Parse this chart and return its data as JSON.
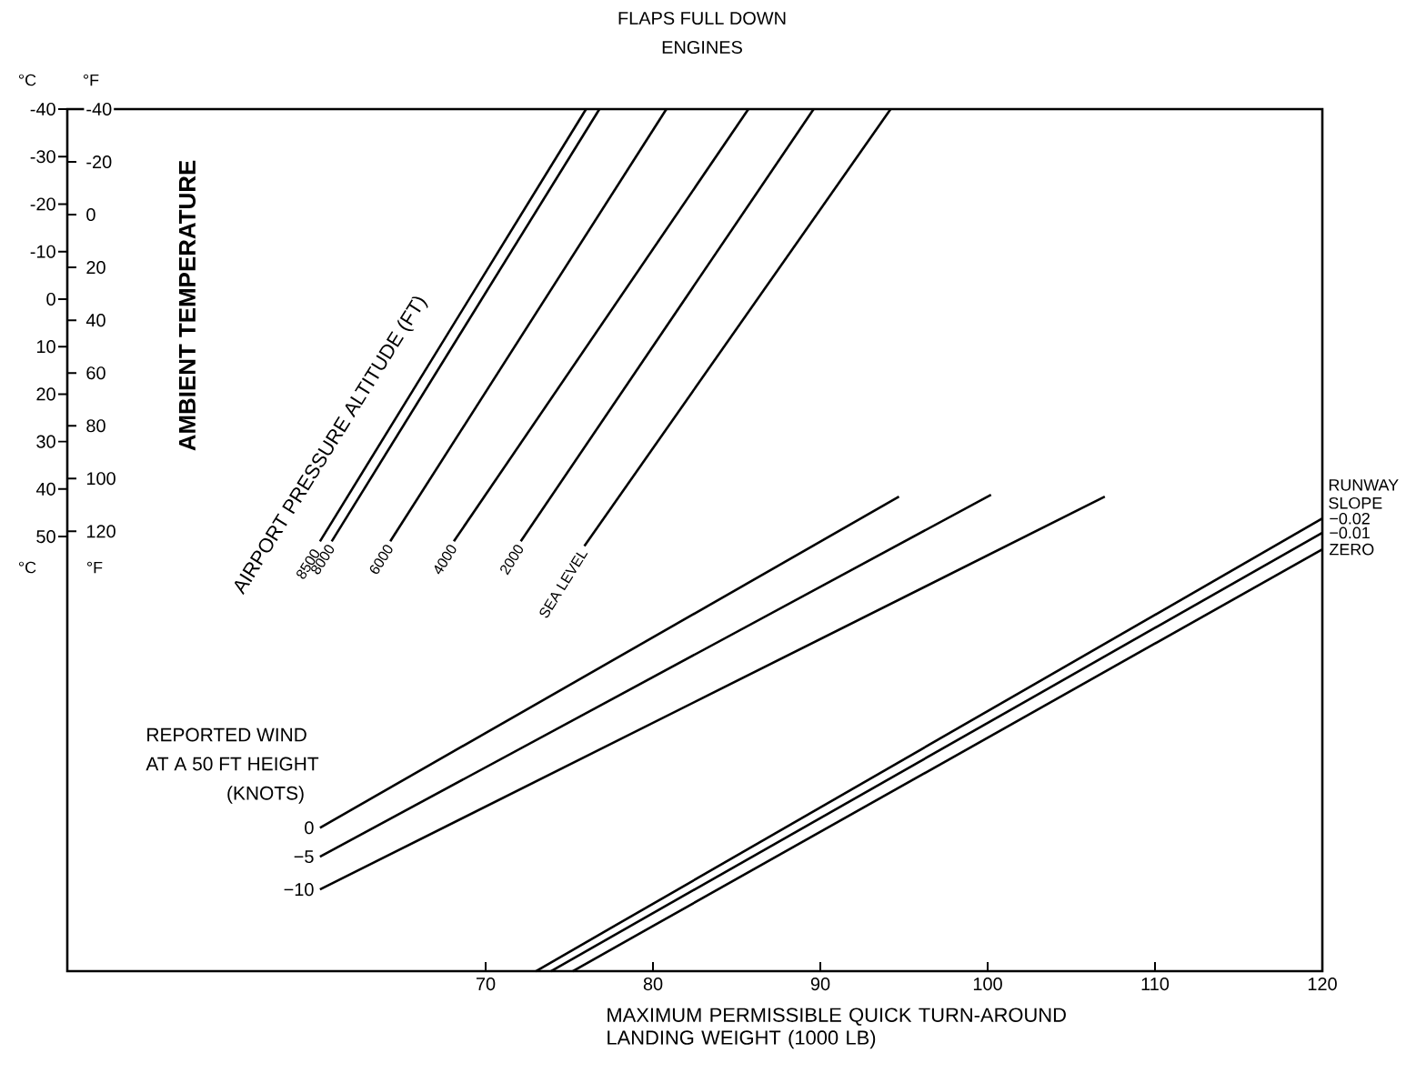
{
  "chart_data": {
    "type": "line",
    "title": "FLAPS FULL DOWN",
    "subtitle": "ENGINES",
    "xlabel": "MAXIMUM PERMISSIBLE QUICK TURN-AROUND LANDING WEIGHT (1000 LB)",
    "y2label": "AMBIENT TEMPERATURE",
    "annotations": [
      "AIRPORT PRESSURE ALTITUDE (FT)",
      "REPORTED WIND",
      "AT A 50 FT HEIGHT",
      "(KNOTS)",
      "RUNWAY SLOPE",
      "°C",
      "°F",
      "°C",
      "°F"
    ],
    "xlim": [
      45,
      120
    ],
    "xticks": [
      70,
      80,
      90,
      100,
      110,
      120
    ],
    "ylim": [
      141.5,
      -40
    ],
    "yticks": [
      -40,
      -30,
      -20,
      -10,
      0,
      10,
      20,
      30,
      40,
      50
    ],
    "y2lim": [
      286.7,
      -40
    ],
    "y2ticks": [
      -40,
      -20,
      0,
      20,
      40,
      60,
      80,
      100,
      120
    ],
    "marker": "none",
    "line_style": "solid",
    "series": [
      {
        "name": "8500",
        "color": "#000000",
        "x": [
          60.1,
          76.0
        ],
        "values": [
          51,
          -40
        ]
      },
      {
        "name": "8000",
        "color": "#000000",
        "x": [
          60.8,
          76.8
        ],
        "values": [
          51,
          -40
        ]
      },
      {
        "name": "6000",
        "color": "#000000",
        "x": [
          64.3,
          80.8
        ],
        "values": [
          51,
          -40
        ]
      },
      {
        "name": "4000",
        "color": "#000000",
        "x": [
          68.1,
          85.7
        ],
        "values": [
          51,
          -40
        ]
      },
      {
        "name": "2000",
        "color": "#000000",
        "x": [
          72.1,
          89.6
        ],
        "values": [
          51,
          -40
        ]
      },
      {
        "name": "SEA LEVEL",
        "color": "#000000",
        "x": [
          75.9,
          94.2
        ],
        "values": [
          52,
          -40
        ]
      },
      {
        "name": "0",
        "color": "#000000",
        "x": [
          60.1,
          94.7
        ],
        "values": [
          111.3,
          41.6
        ]
      },
      {
        "name": "−5",
        "color": "#000000",
        "x": [
          60.1,
          100.2
        ],
        "values": [
          117.4,
          41.2
        ]
      },
      {
        "name": "−10",
        "color": "#000000",
        "x": [
          60.1,
          107.0
        ],
        "values": [
          124.3,
          41.6
        ]
      },
      {
        "name": "−0.02",
        "color": "#000000",
        "x": [
          73.0,
          120
        ],
        "values": [
          141.5,
          46.2
        ]
      },
      {
        "name": "−0.01",
        "color": "#000000",
        "x": [
          73.9,
          120
        ],
        "values": [
          141.5,
          49.2
        ]
      },
      {
        "name": "ZERO",
        "color": "#000000",
        "x": [
          75.2,
          120
        ],
        "values": [
          141.5,
          52.7
        ]
      }
    ]
  }
}
